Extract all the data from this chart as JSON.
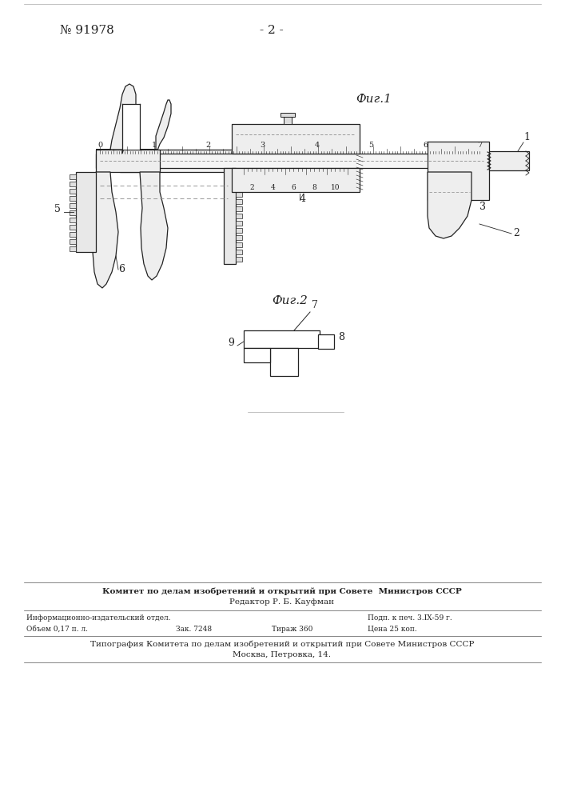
{
  "page_number": "№ 91978",
  "page_num_secondary": "- 2 -",
  "fig1_label": "Фиг.1",
  "fig2_label": "Фиг.2",
  "bg_color": "#ffffff",
  "footer_line1": "Комитет по делам изобретений и открытий при Совете  Министров СССР",
  "footer_line2": "Редактор Р. Б. Кауфман",
  "footer_left1": "Информационно-издательский отдел.",
  "footer_left2": "Объем 0,17 п. л.",
  "footer_left3": "Зак. 7248",
  "footer_right1": "Подп. к печ. 3.ІХ-59 г.",
  "footer_right2": "Тираж 360",
  "footer_right3": "Цена 25 коп.",
  "footer_bottom1": "Типография Комитета по делам изобретений и открытий при Совете Министров СССР",
  "footer_bottom2": "Москва, Петровка, 14."
}
